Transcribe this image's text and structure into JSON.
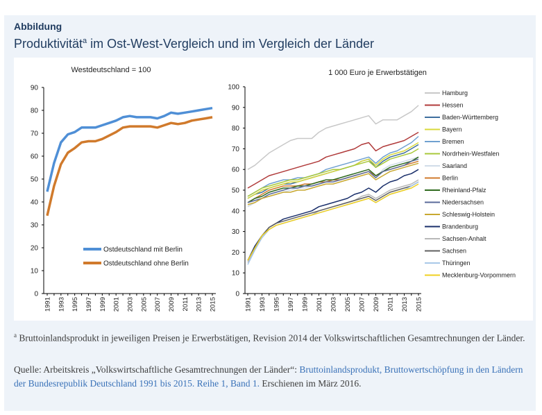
{
  "header": {
    "label": "Abbildung",
    "title_main": "Produktivität",
    "title_sup": "a",
    "title_rest": " im Ost-West-Vergleich und im Vergleich der Länder"
  },
  "footnote": {
    "marker": "a",
    "text": " Bruttoinlandsprodukt in jeweiligen Preisen je Erwerbstätigen, Revision 2014 der Volkswirtschaft­lichen Gesamtrechnungen der Länder."
  },
  "source": {
    "prefix": "Quelle: Arbeitskreis „Volkswirtschaftliche Gesamtrechnungen der Länder“: ",
    "link": "Bruttoinlandsprodukt, Bruttowertschöpfung in den Ländern der Bundesrepublik Deutschland 1991 bis 2015. Reihe 1, Band 1.",
    "suffix": " Erschienen im März 2016."
  },
  "chart_data": [
    {
      "type": "line",
      "title": "Westdeutschland = 100",
      "ylim": [
        0,
        90
      ],
      "yticks": [
        0,
        10,
        20,
        30,
        40,
        50,
        60,
        70,
        80,
        90
      ],
      "x": [
        1991,
        1992,
        1993,
        1994,
        1995,
        1996,
        1997,
        1998,
        1999,
        2000,
        2001,
        2002,
        2003,
        2004,
        2005,
        2006,
        2007,
        2008,
        2009,
        2010,
        2011,
        2012,
        2013,
        2014,
        2015
      ],
      "xtick_labels": [
        "1991",
        "1993",
        "1995",
        "1997",
        "1999",
        "2001",
        "2003",
        "2005",
        "2007",
        "2009",
        "2011",
        "2013",
        "2015"
      ],
      "legend": "lower-center",
      "series": [
        {
          "name": "Ostdeutschland mit Berlin",
          "color": "#4f8fd6",
          "values": [
            44.5,
            57,
            66,
            69.5,
            70.5,
            72.5,
            72.5,
            72.5,
            73.5,
            74.5,
            75.5,
            77,
            77.5,
            77,
            77,
            77,
            76.5,
            77.5,
            79,
            78.5,
            79,
            79.5,
            80,
            80.5,
            81
          ]
        },
        {
          "name": "Ostdeutschland ohne Berlin",
          "color": "#d07a2c",
          "values": [
            34,
            47,
            56.5,
            61.5,
            63.5,
            66,
            66.5,
            66.5,
            67.5,
            69,
            70.5,
            72.5,
            73,
            73,
            73,
            73,
            72.5,
            73.5,
            74.5,
            74,
            74.5,
            75.5,
            76,
            76.5,
            77
          ]
        }
      ]
    },
    {
      "type": "line",
      "title": "1 000 Euro je Erwerbstätigen",
      "ylim": [
        0,
        100
      ],
      "yticks": [
        0,
        10,
        20,
        30,
        40,
        50,
        60,
        70,
        80,
        90,
        100
      ],
      "x": [
        1991,
        1992,
        1993,
        1994,
        1995,
        1996,
        1997,
        1998,
        1999,
        2000,
        2001,
        2002,
        2003,
        2004,
        2005,
        2006,
        2007,
        2008,
        2009,
        2010,
        2011,
        2012,
        2013,
        2014,
        2015
      ],
      "xtick_labels": [
        "1991",
        "1993",
        "1995",
        "1997",
        "1999",
        "2001",
        "2003",
        "2005",
        "2007",
        "2009",
        "2011",
        "2013",
        "2015"
      ],
      "legend": "right",
      "series": [
        {
          "name": "Hamburg",
          "color": "#c8c8c8",
          "values": [
            60,
            62,
            65,
            68,
            70,
            72,
            74,
            75,
            75,
            75,
            78,
            80,
            81,
            82,
            83,
            84,
            85,
            86,
            82,
            84,
            84,
            84,
            86,
            88,
            91
          ]
        },
        {
          "name": "Hessen",
          "color": "#b03a3a",
          "values": [
            51,
            53,
            55,
            57,
            58,
            59,
            60,
            61,
            62,
            63,
            64,
            66,
            67,
            68,
            69,
            70,
            72,
            73,
            69,
            71,
            72,
            73,
            74,
            76,
            78
          ]
        },
        {
          "name": "Baden-Württemberg",
          "color": "#3e6e9e",
          "values": [
            46,
            48,
            49,
            51,
            52,
            53,
            53,
            54,
            55,
            56,
            57,
            58,
            59,
            60,
            61,
            62,
            64,
            65,
            61,
            64,
            66,
            67,
            68,
            70,
            72
          ]
        },
        {
          "name": "Bayern",
          "color": "#d8d83a",
          "values": [
            46,
            48,
            50,
            51,
            52,
            53,
            54,
            54,
            55,
            56,
            57,
            58,
            59,
            60,
            61,
            62,
            64,
            65,
            62,
            65,
            67,
            68,
            69,
            71,
            73
          ]
        },
        {
          "name": "Bremen",
          "color": "#6fa0d0",
          "values": [
            47,
            49,
            51,
            53,
            54,
            55,
            55,
            56,
            56,
            57,
            58,
            60,
            61,
            62,
            63,
            64,
            65,
            66,
            63,
            66,
            68,
            69,
            71,
            73,
            76
          ]
        },
        {
          "name": "Nordrhein-Westfalen",
          "color": "#a8c83a",
          "values": [
            47,
            49,
            51,
            52,
            53,
            54,
            55,
            55,
            56,
            57,
            58,
            59,
            60,
            60,
            61,
            62,
            63,
            64,
            61,
            63,
            65,
            66,
            67,
            68,
            70
          ]
        },
        {
          "name": "Saarland",
          "color": "#d0dce8",
          "values": [
            42,
            44,
            46,
            47,
            48,
            49,
            50,
            51,
            51,
            52,
            53,
            54,
            55,
            56,
            57,
            58,
            59,
            60,
            56,
            60,
            62,
            63,
            64,
            65,
            66
          ]
        },
        {
          "name": "Berlin",
          "color": "#d07a2c",
          "values": [
            44,
            46,
            48,
            50,
            51,
            52,
            52,
            52,
            53,
            53,
            54,
            54,
            55,
            55,
            56,
            57,
            58,
            59,
            57,
            59,
            60,
            61,
            62,
            63,
            64
          ]
        },
        {
          "name": "Rheinland-Pfalz",
          "color": "#2f6a1e",
          "values": [
            44,
            46,
            47,
            49,
            50,
            51,
            51,
            52,
            52,
            53,
            54,
            55,
            55,
            56,
            57,
            58,
            59,
            60,
            57,
            59,
            61,
            62,
            63,
            64,
            66
          ]
        },
        {
          "name": "Niedersachsen",
          "color": "#5a6a9a",
          "values": [
            44,
            45,
            46,
            48,
            49,
            50,
            51,
            51,
            52,
            52,
            53,
            54,
            54,
            55,
            56,
            57,
            58,
            59,
            56,
            59,
            60,
            61,
            62,
            64,
            65
          ]
        },
        {
          "name": "Schleswig-Holstein",
          "color": "#c8a830",
          "values": [
            43,
            44,
            46,
            47,
            48,
            49,
            49,
            50,
            50,
            51,
            52,
            53,
            53,
            54,
            55,
            56,
            57,
            58,
            55,
            57,
            59,
            60,
            61,
            62,
            63
          ]
        },
        {
          "name": "Brandenburg",
          "color": "#1a2f6a",
          "values": [
            16,
            23,
            28,
            32,
            34,
            36,
            37,
            38,
            39,
            40,
            42,
            43,
            44,
            45,
            46,
            48,
            49,
            51,
            49,
            52,
            54,
            55,
            57,
            58,
            60
          ]
        },
        {
          "name": "Sachsen-Anhalt",
          "color": "#b8b8b8",
          "values": [
            15,
            22,
            27,
            31,
            33,
            34,
            35,
            36,
            37,
            38,
            40,
            41,
            42,
            43,
            44,
            45,
            47,
            48,
            46,
            48,
            50,
            51,
            52,
            53,
            55
          ]
        },
        {
          "name": "Sachsen",
          "color": "#606060",
          "values": [
            16,
            22,
            28,
            32,
            34,
            35,
            36,
            37,
            38,
            39,
            40,
            41,
            42,
            43,
            44,
            45,
            46,
            47,
            45,
            47,
            49,
            50,
            51,
            52,
            54
          ]
        },
        {
          "name": "Thüringen",
          "color": "#a8c8e8",
          "values": [
            14,
            21,
            27,
            31,
            33,
            34,
            35,
            36,
            37,
            38,
            39,
            40,
            41,
            42,
            43,
            44,
            45,
            46,
            44,
            46,
            48,
            49,
            50,
            52,
            54
          ]
        },
        {
          "name": "Mecklenburg-Vorpommern",
          "color": "#f0d020",
          "values": [
            16,
            22,
            28,
            31,
            33,
            34,
            35,
            36,
            37,
            38,
            39,
            40,
            41,
            42,
            43,
            44,
            45,
            46,
            44,
            46,
            48,
            49,
            50,
            51,
            53
          ]
        }
      ]
    }
  ]
}
